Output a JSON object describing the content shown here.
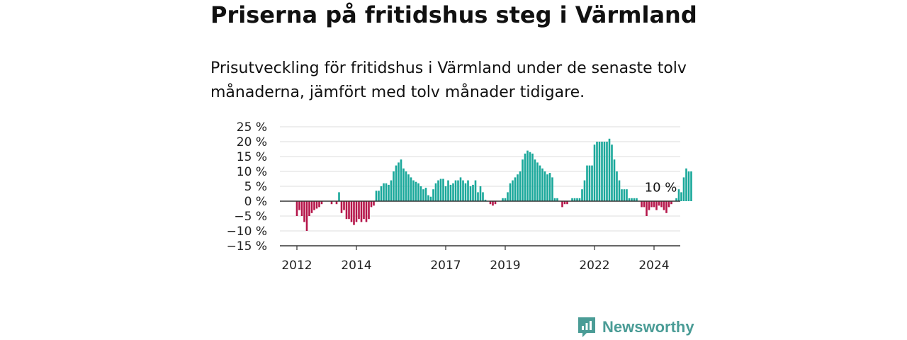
{
  "title": "Priserna på fritidshus steg i Värmland",
  "subtitle": "Prisutveckling för fritidshus i Värmland under de senaste tolv månaderna, jämfört med tolv månader tidigare.",
  "brand": {
    "name": "Newsworthy",
    "color": "#4a9c96"
  },
  "colors": {
    "positive": "#1aa89b",
    "negative": "#b5174b",
    "grid": "#dcdcdc",
    "zero": "#333333"
  },
  "chart_data": {
    "type": "bar",
    "ylim": [
      -15,
      25
    ],
    "yticks": [
      -15,
      -10,
      -5,
      0,
      5,
      10,
      15,
      20,
      25
    ],
    "ytick_labels": [
      "−15 %",
      "−10 %",
      "−5 %",
      "0 %",
      "5 %",
      "10 %",
      "15 %",
      "20 %",
      "25 %"
    ],
    "x_start": "2012-01",
    "xticks": [
      {
        "label": "2012",
        "index": 0
      },
      {
        "label": "2014",
        "index": 24
      },
      {
        "label": "2017",
        "index": 60
      },
      {
        "label": "2019",
        "index": 84
      },
      {
        "label": "2022",
        "index": 120
      },
      {
        "label": "2024",
        "index": 144
      }
    ],
    "values": [
      -5,
      -3,
      -5,
      -7,
      -10,
      -5,
      -4,
      -3,
      -2.5,
      -2,
      -1,
      0,
      0,
      0,
      -1,
      0,
      -1,
      3,
      -4,
      -3,
      -6,
      -6,
      -7,
      -8,
      -7,
      -6,
      -7,
      -6,
      -7,
      -6,
      -2,
      -1.5,
      3.5,
      3.5,
      5,
      6,
      6,
      5.5,
      7,
      10,
      12,
      13,
      14,
      11,
      10,
      9,
      8,
      7,
      6.5,
      6,
      5,
      4,
      4.5,
      2,
      1.5,
      4,
      6,
      7,
      7.5,
      7.5,
      5,
      7,
      5.5,
      6,
      7,
      7,
      8,
      7,
      6,
      7,
      5,
      5.5,
      7,
      3,
      5,
      3,
      0.5,
      0,
      -1,
      -1.5,
      -1,
      0,
      0,
      1,
      1,
      3,
      6,
      7,
      8,
      9,
      10,
      14,
      16,
      17,
      16.5,
      16,
      14,
      13,
      12,
      11,
      10,
      9,
      9.5,
      8,
      1,
      1,
      0,
      -2,
      -1,
      -1,
      0,
      1,
      1,
      1,
      1,
      4,
      7,
      12,
      12,
      12,
      19,
      20,
      20,
      20,
      20,
      20,
      21,
      19,
      14,
      10,
      7,
      4,
      4,
      4,
      1,
      1,
      1,
      1,
      0,
      -2,
      -2,
      -5,
      -3,
      -2,
      -2,
      -3,
      -1.5,
      -2,
      -3,
      -4,
      -2,
      -1,
      0,
      1,
      4,
      3,
      8,
      11,
      10,
      10
    ],
    "annotation": {
      "text": "10 %",
      "index": 147
    }
  }
}
